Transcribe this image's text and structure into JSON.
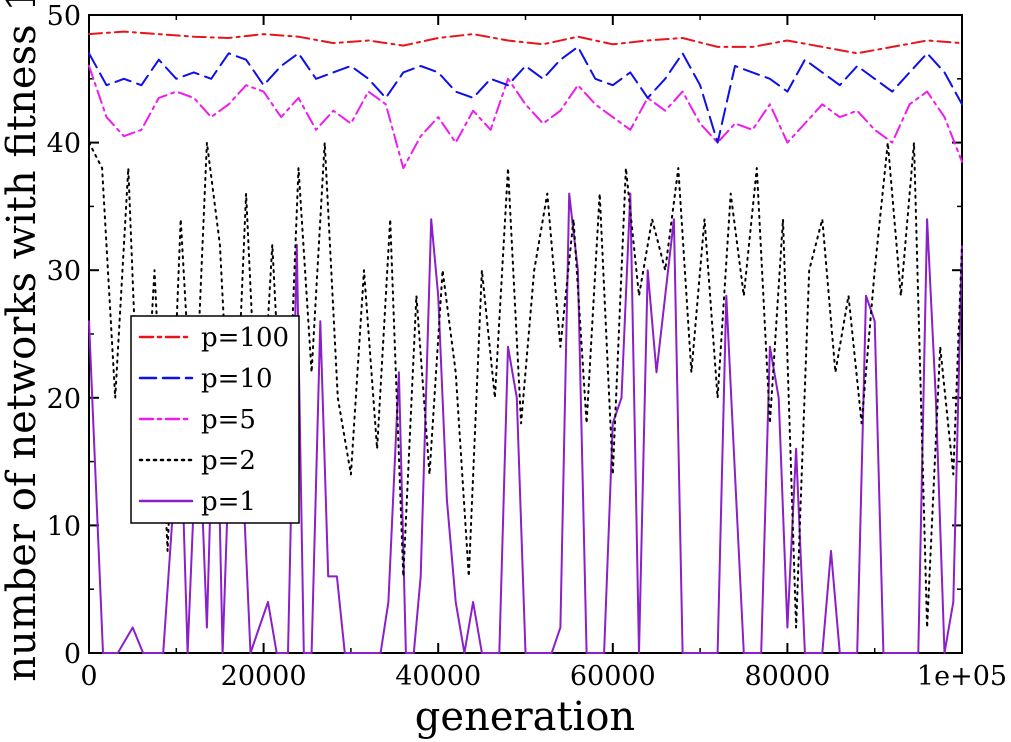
{
  "chart_data": {
    "type": "line",
    "title": "",
    "xlabel": "generation",
    "ylabel": "number of networks with fitness 1",
    "xlim": [
      0,
      100000
    ],
    "ylim": [
      0,
      50
    ],
    "xticks": [
      0,
      20000,
      40000,
      60000,
      80000,
      100000
    ],
    "xtick_labels": [
      "0",
      "20000",
      "40000",
      "60000",
      "80000",
      "1e+05"
    ],
    "yticks": [
      0,
      10,
      20,
      30,
      40,
      50
    ],
    "ytick_labels": [
      "0",
      "10",
      "20",
      "30",
      "40",
      "50"
    ],
    "legend_position": "left-middle",
    "series": [
      {
        "name": "p=100",
        "color": "#e8141c",
        "dash": "dashdot",
        "x": [
          0,
          4000,
          8000,
          12000,
          16000,
          20000,
          24000,
          28000,
          32000,
          36000,
          40000,
          44000,
          48000,
          52000,
          56000,
          60000,
          64000,
          68000,
          72000,
          76000,
          80000,
          84000,
          88000,
          92000,
          96000,
          100000
        ],
        "y": [
          48.5,
          48.7,
          48.5,
          48.3,
          48.2,
          48.5,
          48.3,
          47.8,
          48.0,
          47.6,
          48.2,
          48.5,
          48.0,
          47.7,
          48.3,
          47.7,
          48.0,
          48.2,
          47.5,
          47.5,
          48.0,
          47.5,
          47.0,
          47.5,
          48.0,
          47.8
        ]
      },
      {
        "name": "p=10",
        "color": "#0e10e6",
        "dash": "dash",
        "x": [
          0,
          2000,
          4000,
          6000,
          8000,
          10000,
          12000,
          14000,
          16000,
          18000,
          20000,
          22000,
          24000,
          26000,
          28000,
          30000,
          32000,
          34000,
          36000,
          38000,
          40000,
          42000,
          44000,
          46000,
          48000,
          50000,
          52000,
          54000,
          56000,
          58000,
          60000,
          62000,
          64000,
          66000,
          68000,
          70000,
          72000,
          74000,
          76000,
          78000,
          80000,
          82000,
          84000,
          86000,
          88000,
          90000,
          92000,
          94000,
          96000,
          98000,
          100000
        ],
        "y": [
          47.0,
          44.5,
          45.0,
          44.5,
          46.5,
          45.0,
          45.5,
          45.0,
          47.0,
          46.5,
          44.5,
          46.0,
          47.0,
          45.0,
          45.5,
          46.0,
          45.0,
          43.5,
          45.5,
          46.0,
          45.5,
          44.0,
          43.5,
          45.0,
          44.5,
          46.0,
          45.0,
          46.5,
          47.5,
          45.0,
          44.5,
          45.5,
          43.5,
          45.0,
          47.0,
          44.5,
          40.0,
          46.0,
          45.5,
          45.0,
          44.0,
          46.5,
          45.5,
          44.5,
          46.0,
          45.0,
          44.0,
          45.5,
          47.0,
          45.5,
          43.0
        ]
      },
      {
        "name": "p=5",
        "color": "#ee1cee",
        "dash": "dashdot",
        "x": [
          0,
          2000,
          4000,
          6000,
          8000,
          10000,
          12000,
          14000,
          16000,
          18000,
          20000,
          22000,
          24000,
          26000,
          28000,
          30000,
          32000,
          34000,
          36000,
          38000,
          40000,
          42000,
          44000,
          46000,
          48000,
          50000,
          52000,
          54000,
          56000,
          58000,
          60000,
          62000,
          64000,
          66000,
          68000,
          70000,
          72000,
          74000,
          76000,
          78000,
          80000,
          82000,
          84000,
          86000,
          88000,
          90000,
          92000,
          94000,
          96000,
          98000,
          100000
        ],
        "y": [
          46.0,
          42.0,
          40.5,
          41.0,
          43.5,
          44.0,
          43.5,
          42.0,
          43.0,
          44.5,
          44.0,
          42.0,
          43.5,
          41.0,
          42.5,
          41.5,
          44.0,
          43.0,
          38.0,
          40.5,
          42.0,
          40.0,
          42.5,
          41.0,
          45.0,
          43.0,
          41.5,
          42.5,
          44.5,
          43.0,
          42.0,
          41.0,
          43.5,
          42.5,
          44.0,
          41.5,
          40.0,
          41.5,
          41.0,
          43.0,
          40.0,
          41.5,
          43.0,
          42.0,
          42.5,
          41.0,
          40.0,
          43.0,
          44.0,
          42.0,
          38.5
        ]
      },
      {
        "name": "p=2",
        "color": "#000000",
        "dash": "dot",
        "x": [
          0,
          1500,
          3000,
          4500,
          6000,
          7500,
          9000,
          10500,
          12000,
          13500,
          15000,
          16500,
          18000,
          19500,
          21000,
          22500,
          24000,
          25500,
          27000,
          28500,
          30000,
          31500,
          33000,
          34500,
          36000,
          37500,
          39000,
          40500,
          42000,
          43500,
          45000,
          46500,
          48000,
          49500,
          51000,
          52500,
          54000,
          55500,
          57000,
          58500,
          60000,
          61500,
          63000,
          64500,
          66000,
          67500,
          69000,
          70500,
          72000,
          73500,
          75000,
          76500,
          78000,
          79500,
          81000,
          82500,
          84000,
          85500,
          87000,
          88500,
          90000,
          91500,
          93000,
          94500,
          96000,
          97500,
          99000,
          100000
        ],
        "y": [
          40,
          38,
          20,
          38,
          12,
          30,
          8,
          34,
          16,
          40,
          32,
          12,
          36,
          14,
          32,
          12,
          38,
          22,
          40,
          20,
          14,
          30,
          16,
          34,
          6,
          28,
          14,
          30,
          22,
          6,
          30,
          20,
          38,
          18,
          30,
          36,
          24,
          34,
          18,
          36,
          14,
          38,
          28,
          34,
          30,
          38,
          22,
          34,
          20,
          36,
          28,
          38,
          18,
          34,
          2,
          30,
          34,
          22,
          28,
          18,
          30,
          40,
          28,
          40,
          2,
          24,
          14,
          32
        ]
      },
      {
        "name": "p=1",
        "color": "#8b1fc8",
        "dash": "solid",
        "x": [
          0,
          800,
          1600,
          2500,
          3300,
          5000,
          6200,
          7500,
          8500,
          9500,
          10500,
          11300,
          12500,
          13500,
          14500,
          15300,
          16200,
          17200,
          18500,
          19500,
          20500,
          21500,
          22800,
          23800,
          24600,
          25500,
          26500,
          27400,
          28400,
          29300,
          30300,
          31200,
          32300,
          33400,
          34300,
          35500,
          36300,
          37200,
          38000,
          39200,
          40000,
          41000,
          42000,
          43000,
          44000,
          45000,
          46000,
          47000,
          48000,
          49000,
          50000,
          51000,
          52000,
          53000,
          54000,
          55000,
          56000,
          57000,
          58000,
          59000,
          60000,
          61000,
          62000,
          63000,
          64000,
          65000,
          66000,
          67000,
          68000,
          69000,
          70000,
          71000,
          72000,
          73000,
          74000,
          75000,
          76000,
          77000,
          78000,
          79000,
          80000,
          81000,
          82000,
          83000,
          84000,
          85000,
          86000,
          87000,
          88000,
          89000,
          90000,
          91000,
          92000,
          93000,
          94000,
          95000,
          96000,
          97000,
          98000,
          99000,
          100000
        ],
        "y": [
          26,
          13,
          0,
          0,
          0,
          2,
          0,
          0,
          0,
          10,
          18,
          0,
          20,
          2,
          26,
          0,
          18,
          20,
          0,
          2,
          4,
          0,
          0,
          32,
          0,
          0,
          26,
          6,
          6,
          0,
          0,
          0,
          0,
          0,
          4,
          22,
          0,
          0,
          6,
          34,
          28,
          12,
          4,
          0,
          4,
          0,
          0,
          0,
          24,
          20,
          0,
          0,
          0,
          0,
          2,
          36,
          30,
          0,
          0,
          0,
          18,
          20,
          36,
          0,
          30,
          22,
          28,
          34,
          0,
          0,
          0,
          0,
          0,
          28,
          14,
          0,
          0,
          0,
          24,
          20,
          2,
          16,
          0,
          0,
          0,
          8,
          0,
          0,
          0,
          28,
          26,
          0,
          0,
          0,
          0,
          0,
          34,
          20,
          0,
          4,
          32
        ]
      }
    ]
  }
}
